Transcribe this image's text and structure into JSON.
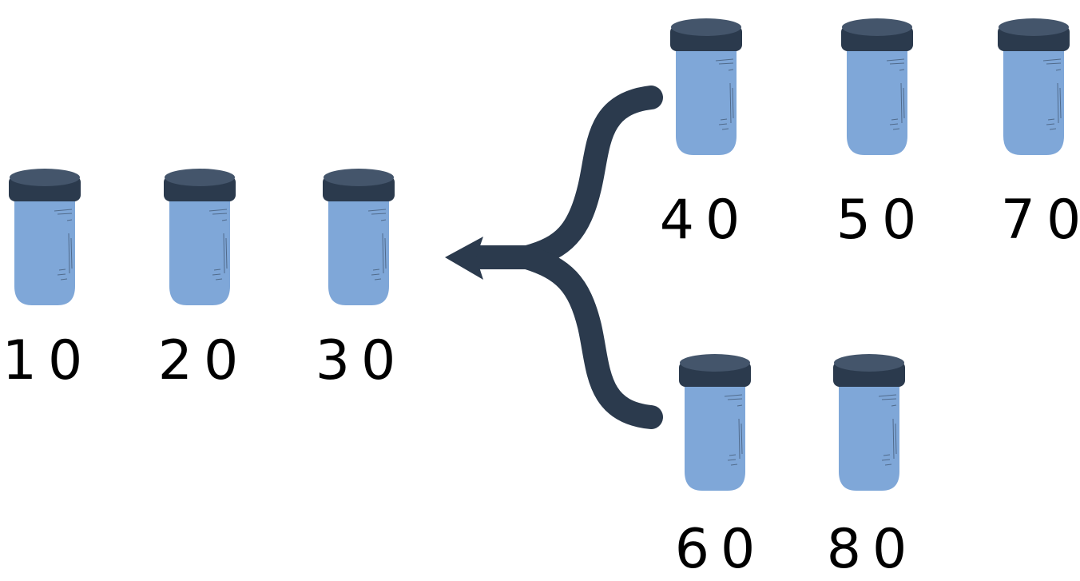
{
  "colors": {
    "jar_body": "#7fa7d8",
    "jar_lid": "#2b3a4d",
    "jar_lid_top": "#44556b",
    "arrow": "#2b3a4d",
    "label": "#000000"
  },
  "jars": [
    {
      "id": "jar-10",
      "label": "10"
    },
    {
      "id": "jar-20",
      "label": "20"
    },
    {
      "id": "jar-30",
      "label": "30"
    },
    {
      "id": "jar-40",
      "label": "40"
    },
    {
      "id": "jar-50",
      "label": "50"
    },
    {
      "id": "jar-70",
      "label": "70"
    },
    {
      "id": "jar-60",
      "label": "60"
    },
    {
      "id": "jar-80",
      "label": "80"
    }
  ],
  "connector": {
    "type": "merge-arrow",
    "from": [
      "upper-group",
      "lower-group"
    ],
    "to": "left-group"
  }
}
